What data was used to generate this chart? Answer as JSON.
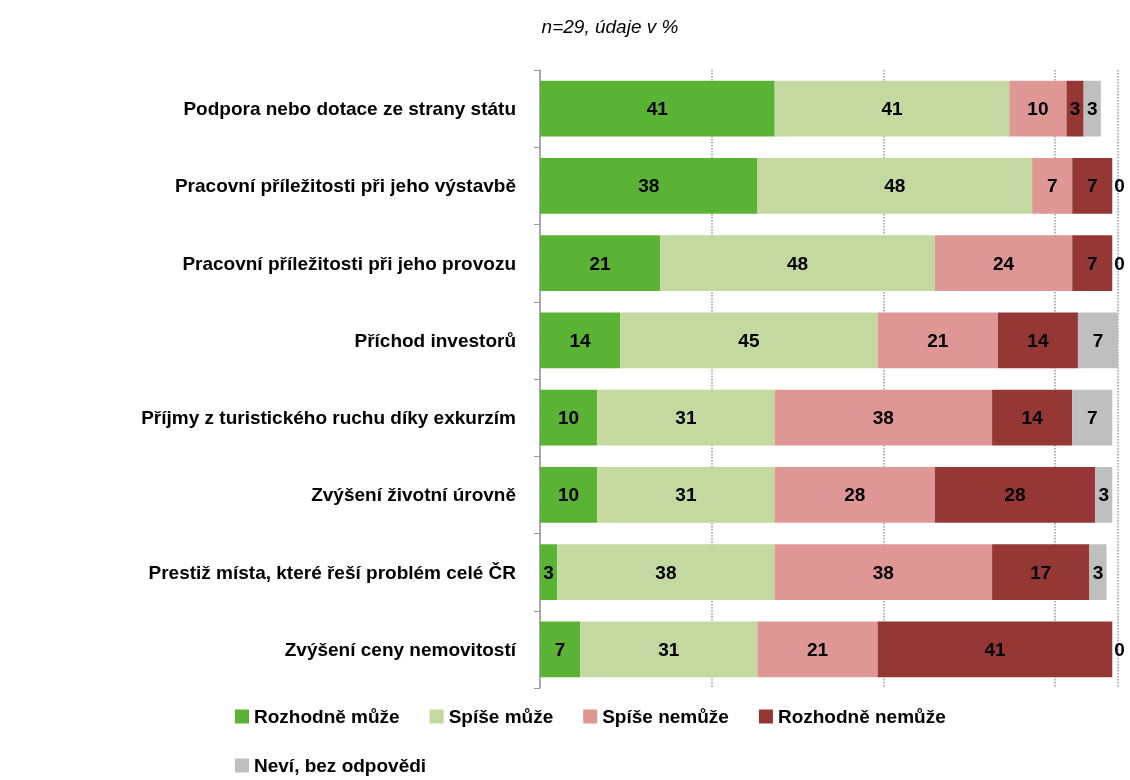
{
  "chart_data": {
    "type": "bar",
    "orientation": "horizontal",
    "stacked": true,
    "title": "n=29, údaje v %",
    "categories": [
      "Podpora nebo dotace ze strany státu",
      "Pracovní příležitosti při jeho výstavbě",
      "Pracovní příležitosti při jeho provozu",
      "Příchod investorů",
      "Příjmy z turistického ruchu díky exkurzím",
      "Zvýšení životní úrovně",
      "Prestiž místa, které řeší problém celé ČR",
      "Zvýšení ceny nemovitostí"
    ],
    "series": [
      {
        "name": "Rozhodně může",
        "color": "#5bb336",
        "values": [
          41,
          38,
          21,
          14,
          10,
          10,
          3,
          7
        ]
      },
      {
        "name": "Spíše může",
        "color": "#c4d9a0",
        "values": [
          41,
          48,
          48,
          45,
          31,
          31,
          38,
          31
        ]
      },
      {
        "name": "Spíše nemůže",
        "color": "#df9796",
        "values": [
          10,
          7,
          24,
          21,
          38,
          28,
          38,
          21
        ]
      },
      {
        "name": "Rozhodně nemůže",
        "color": "#953735",
        "values": [
          3,
          7,
          7,
          14,
          14,
          28,
          17,
          41
        ]
      },
      {
        "name": "Neví, bez odpovědi",
        "color": "#bfbfbf",
        "values": [
          3,
          0,
          0,
          7,
          7,
          3,
          3,
          0
        ]
      }
    ],
    "grid": "x",
    "tick_labels": "y",
    "data_labels": true,
    "legend": "bottom"
  }
}
